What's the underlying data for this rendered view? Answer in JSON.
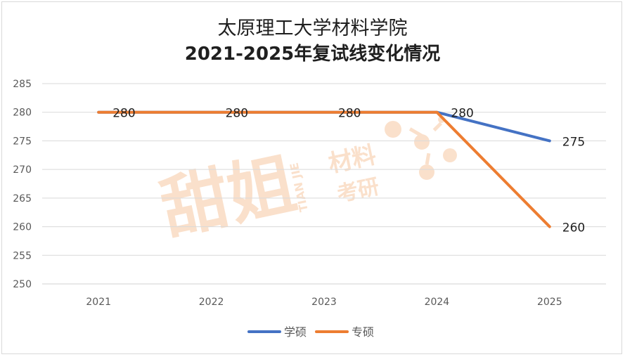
{
  "chart_data": {
    "type": "line",
    "title": "太原理工大学材料学院",
    "subtitle": "2021-2025年复试线变化情况",
    "categories": [
      "2021",
      "2022",
      "2023",
      "2024",
      "2025"
    ],
    "series": [
      {
        "name": "学硕",
        "values": [
          280,
          280,
          280,
          280,
          275
        ],
        "color": "#4472c4"
      },
      {
        "name": "专硕",
        "values": [
          280,
          280,
          280,
          280,
          260
        ],
        "color": "#ed7d31"
      }
    ],
    "data_labels": {
      "series_index": 1,
      "labels": [
        "280",
        "280",
        "280",
        "280",
        "260"
      ],
      "extra": {
        "series_index": 0,
        "category_index": 4,
        "label": "275"
      }
    },
    "ylim": [
      250,
      285
    ],
    "yticks": [
      250,
      255,
      260,
      265,
      270,
      275,
      280,
      285
    ],
    "grid": true,
    "legend_position": "bottom"
  },
  "watermark": {
    "brand": "甜姐",
    "line1": "材料",
    "line2": "考研",
    "pinyin": "TIAN JIE",
    "color": "#f4b183"
  }
}
